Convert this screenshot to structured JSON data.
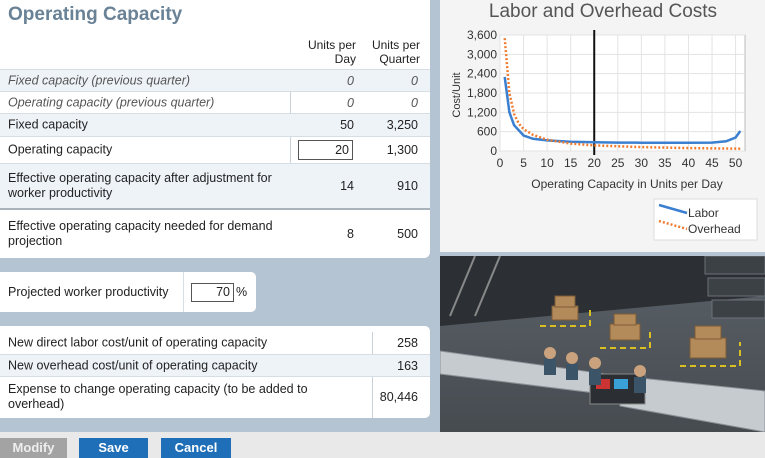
{
  "operating_capacity": {
    "title": "Operating Capacity",
    "col_day": "Units per Day",
    "col_quarter": "Units per Quarter",
    "rows": [
      {
        "label": "Fixed capacity (previous quarter)",
        "day": "0",
        "quarter": "0"
      },
      {
        "label": "Operating capacity (previous quarter)",
        "day": "0",
        "quarter": "0"
      },
      {
        "label": "Fixed capacity",
        "day": "50",
        "quarter": "3,250"
      },
      {
        "label": "Operating capacity",
        "day": "20",
        "quarter": "1,300"
      },
      {
        "label": "Effective operating capacity after adjustment for worker productivity",
        "day": "14",
        "quarter": "910"
      },
      {
        "label": "Effective operating capacity needed for demand projection",
        "day": "8",
        "quarter": "500"
      }
    ]
  },
  "productivity": {
    "label": "Projected worker productivity",
    "value": "70",
    "unit": "%"
  },
  "new_costs": {
    "rows": [
      {
        "label": "New direct labor cost/unit of operating capacity",
        "value": "258"
      },
      {
        "label": "New overhead cost/unit of operating capacity",
        "value": "163"
      },
      {
        "label": "Expense to change operating capacity (to be added to overhead)",
        "value": "80,446"
      }
    ]
  },
  "chart_data": {
    "type": "line",
    "title": "Labor and Overhead Costs",
    "xlabel": "Operating Capacity in Units per Day",
    "ylabel": "Cost/Unit",
    "xlim": [
      0,
      52
    ],
    "ylim": [
      0,
      3600
    ],
    "xticks": [
      "0",
      "5",
      "10",
      "15",
      "20",
      "25",
      "30",
      "35",
      "40",
      "45",
      "50"
    ],
    "yticks": [
      "0",
      "600",
      "1,200",
      "1,800",
      "2,400",
      "3,000",
      "3,600"
    ],
    "grid": true,
    "legend_position": "bottom-right",
    "marker_x": 20,
    "series": [
      {
        "name": "Labor",
        "color": "#3b7fd0",
        "style": "solid",
        "x": [
          1,
          2,
          3,
          5,
          7,
          10,
          15,
          20,
          25,
          30,
          35,
          40,
          45,
          48,
          50,
          51
        ],
        "y": [
          2300,
          1200,
          800,
          480,
          380,
          330,
          290,
          270,
          262,
          258,
          255,
          255,
          260,
          300,
          420,
          620
        ]
      },
      {
        "name": "Overhead",
        "color": "#f07c30",
        "style": "dotted",
        "x": [
          1,
          2,
          3,
          4,
          5,
          7,
          10,
          15,
          20,
          30,
          40,
          51
        ],
        "y": [
          3500,
          1800,
          1150,
          850,
          680,
          500,
          350,
          230,
          175,
          120,
          90,
          70
        ]
      }
    ]
  },
  "buttons": {
    "modify": "Modify",
    "save": "Save",
    "cancel": "Cancel"
  },
  "colors": {
    "accent": "#1e6fb8",
    "title": "#6a8296",
    "disabled": "#a3a3a3"
  }
}
